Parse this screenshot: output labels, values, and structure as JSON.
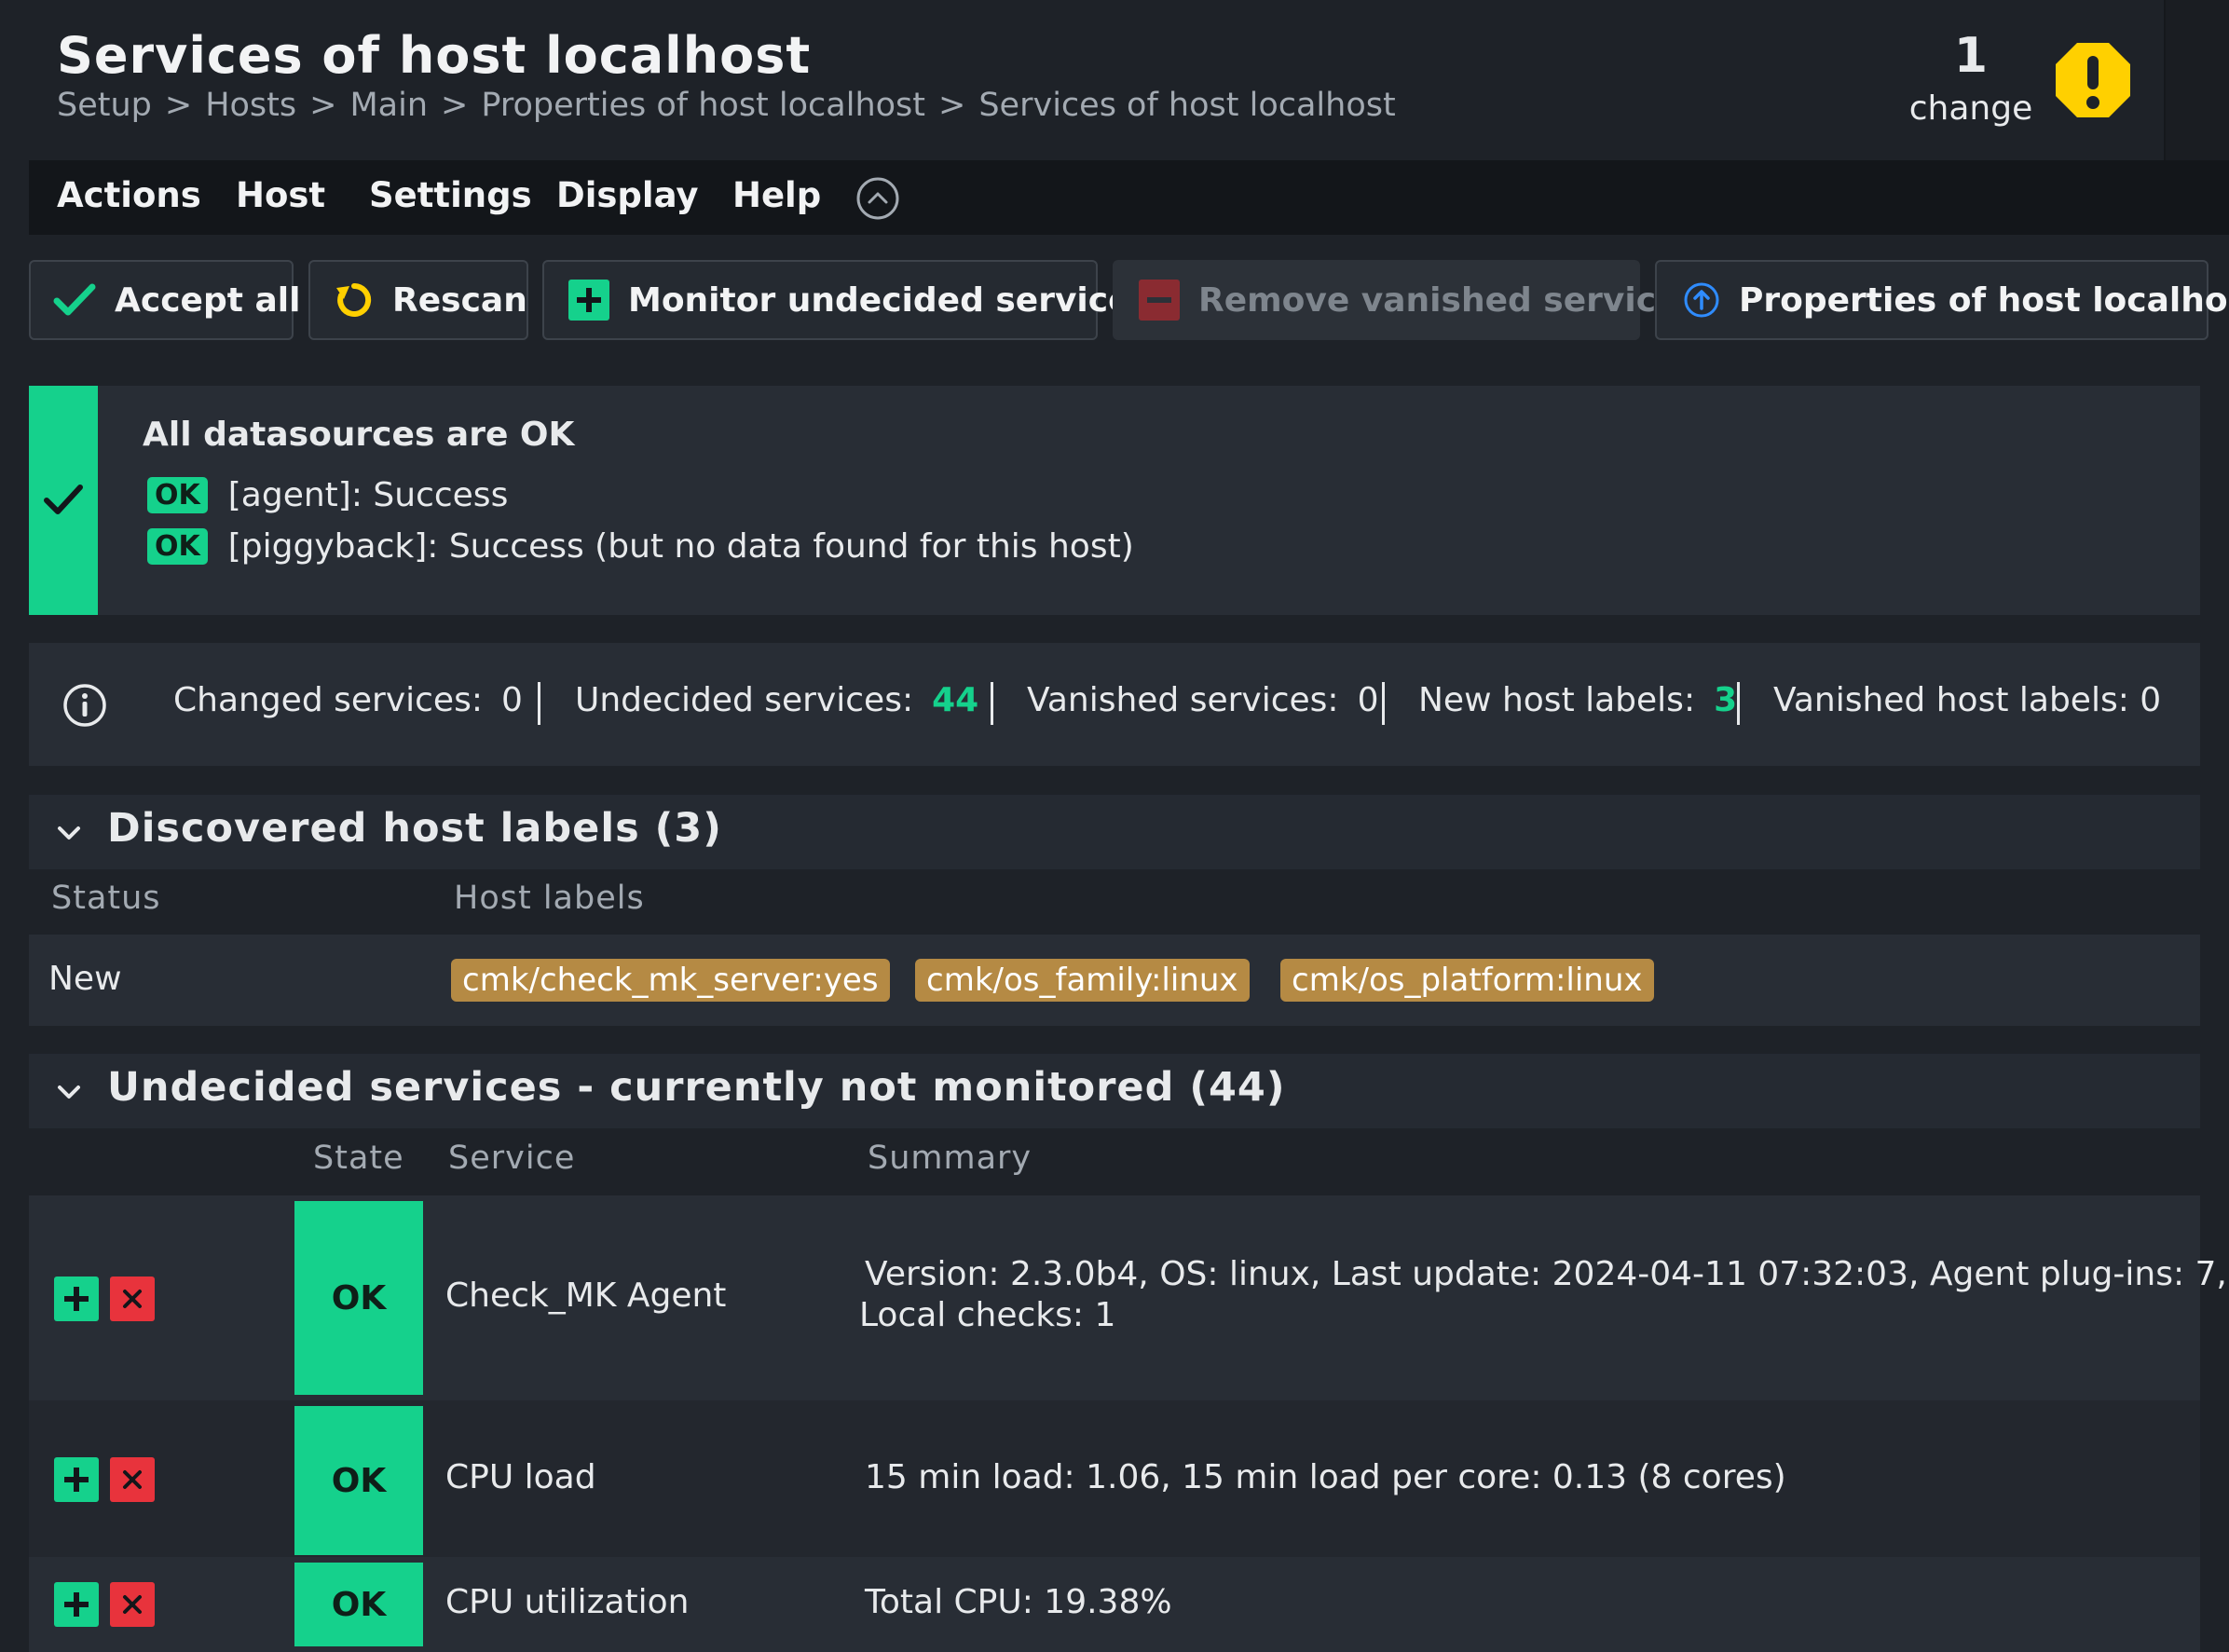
{
  "header": {
    "title": "Services of host localhost",
    "breadcrumb": [
      "Setup",
      "Hosts",
      "Main",
      "Properties of host localhost",
      "Services of host localhost"
    ],
    "breadcrumb_separator": ">",
    "changes": {
      "count": "1",
      "label": "change"
    }
  },
  "menu": [
    "Actions",
    "Host",
    "Settings",
    "Display",
    "Help"
  ],
  "buttons": {
    "accept_all": "Accept all",
    "rescan": "Rescan",
    "monitor_undecided": "Monitor undecided services",
    "remove_vanished": "Remove vanished services",
    "host_properties": "Properties of host localhost"
  },
  "datasources": {
    "title": "All datasources are OK",
    "items": [
      {
        "state": "OK",
        "text": "[agent]: Success"
      },
      {
        "state": "OK",
        "text": "[piggyback]: Success (but no data found for this host)"
      }
    ]
  },
  "summary_bar": {
    "changed_label": "Changed services:",
    "changed_value": "0",
    "undecided_label": "Undecided services:",
    "undecided_value": "44",
    "vanished_label": "Vanished services:",
    "vanished_value": "0",
    "new_labels_label": "New host labels:",
    "new_labels_value": "3",
    "vanished_labels_text": "Vanished host labels: 0"
  },
  "host_labels": {
    "title": "Discovered host labels (3)",
    "columns": [
      "Status",
      "Host labels"
    ],
    "rows": [
      {
        "status": "New",
        "labels": [
          "cmk/check_mk_server:yes",
          "cmk/os_family:linux",
          "cmk/os_platform:linux"
        ]
      }
    ]
  },
  "undecided": {
    "title": "Undecided services - currently not monitored (44)",
    "columns": [
      "State",
      "Service",
      "Summary"
    ],
    "rows": [
      {
        "state": "OK",
        "service": "Check_MK Agent",
        "summary_line1": "Version: 2.3.0b4, OS: linux, Last update: 2024-04-11 07:32:03, Agent plug-ins: 7,",
        "summary_line2": "Local checks: 1"
      },
      {
        "state": "OK",
        "service": "CPU load",
        "summary_line1": "15 min load: 1.06, 15 min load per core: 0.13 (8 cores)"
      },
      {
        "state": "OK",
        "service": "CPU utilization",
        "summary_line1": "Total CPU: 19.38%"
      }
    ]
  },
  "colors": {
    "ok": "#15d18c",
    "warn": "#ffd000",
    "critical": "#e8333c",
    "label_chip": "#b58a44",
    "accent_blue": "#2f8cff"
  }
}
